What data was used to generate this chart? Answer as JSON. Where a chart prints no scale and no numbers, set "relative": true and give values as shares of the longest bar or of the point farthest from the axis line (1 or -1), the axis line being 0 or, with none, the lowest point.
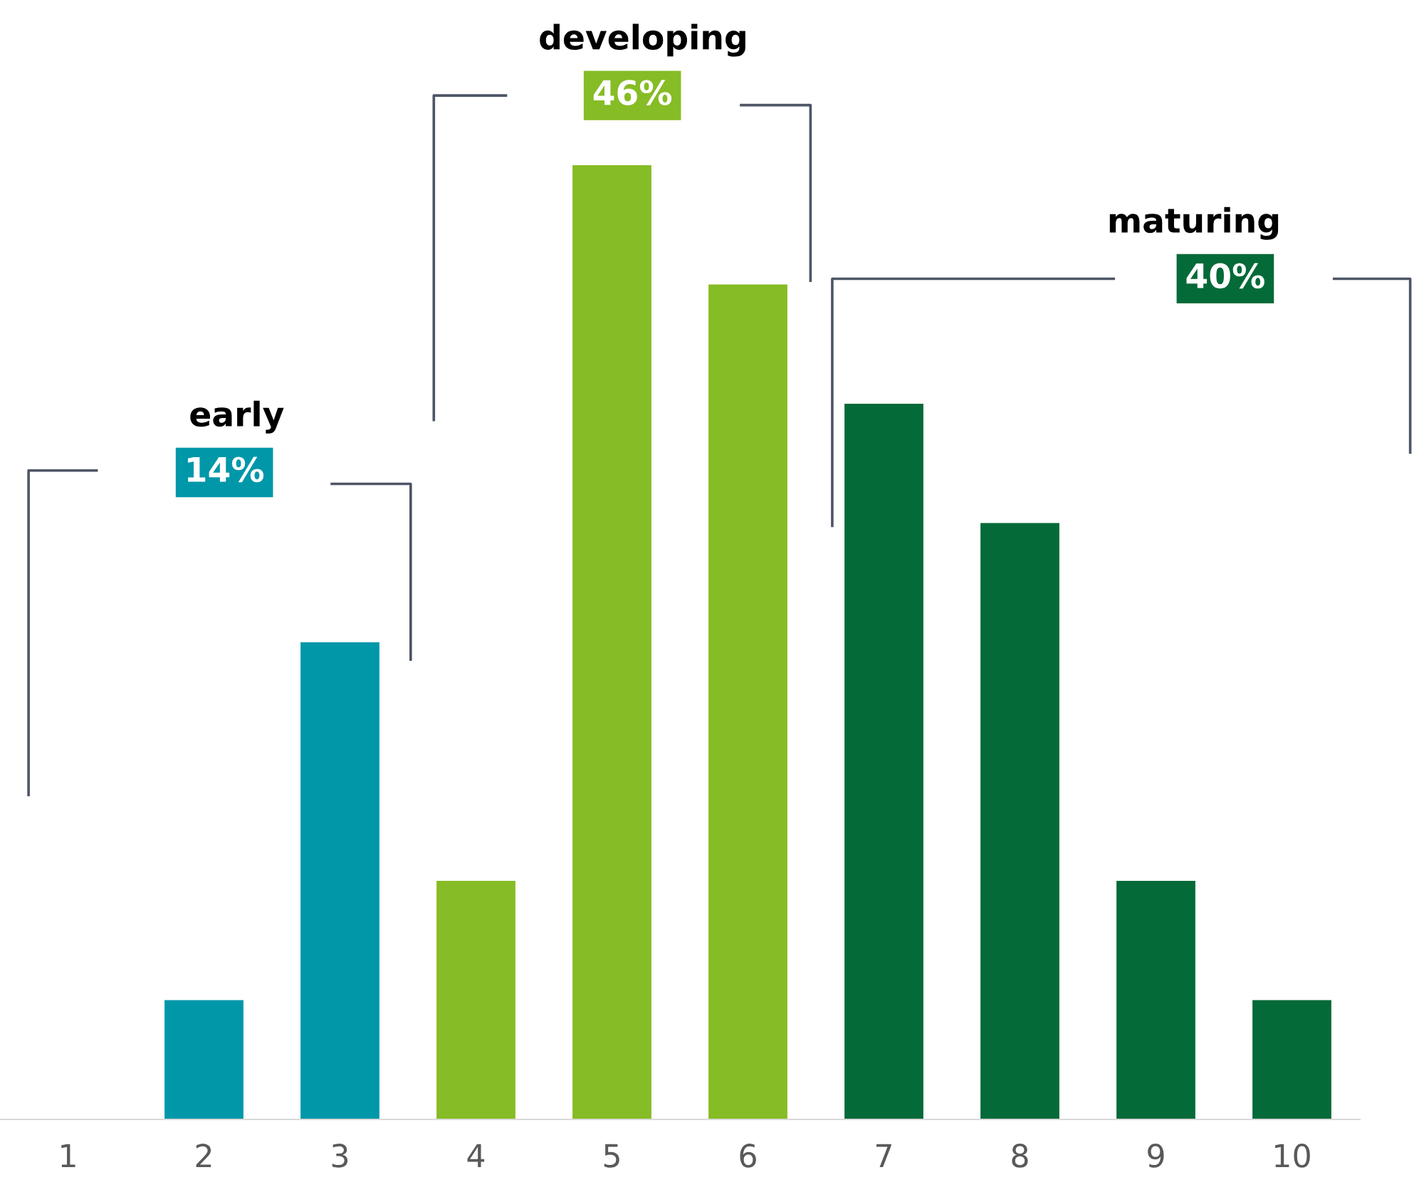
{
  "chart_data": {
    "type": "bar",
    "relative": true,
    "categories": [
      "1",
      "2",
      "3",
      "4",
      "5",
      "6",
      "7",
      "8",
      "9",
      "10"
    ],
    "values": [
      0,
      0.125,
      0.5,
      0.25,
      1,
      0.875,
      0.75,
      0.625,
      0.25,
      0.125
    ],
    "colors": [
      "#0097a9",
      "#0097a9",
      "#0097a9",
      "#86bc25",
      "#86bc25",
      "#86bc25",
      "#046a38",
      "#046a38",
      "#046a38",
      "#046a38"
    ],
    "annotations": [
      "early",
      "14%",
      "developing",
      "46%",
      "maturing",
      "40%"
    ],
    "grid": false,
    "legend": false
  }
}
